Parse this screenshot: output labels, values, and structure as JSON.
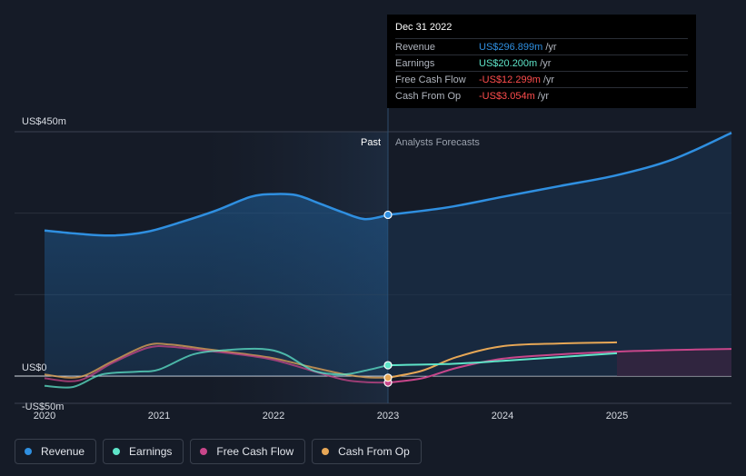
{
  "tooltip": {
    "date": "Dec 31 2022",
    "rows": [
      {
        "label": "Revenue",
        "value": "US$296.899m",
        "unit": "/yr",
        "color": "#2f8fe0"
      },
      {
        "label": "Earnings",
        "value": "US$20.200m",
        "unit": "/yr",
        "color": "#5ee4c8"
      },
      {
        "label": "Free Cash Flow",
        "value": "-US$12.299m",
        "unit": "/yr",
        "color": "#ff4d4d"
      },
      {
        "label": "Cash From Op",
        "value": "-US$3.054m",
        "unit": "/yr",
        "color": "#ff4d4d"
      }
    ]
  },
  "legend": [
    {
      "label": "Revenue",
      "color": "#2f8fe0"
    },
    {
      "label": "Earnings",
      "color": "#5ee4c8"
    },
    {
      "label": "Free Cash Flow",
      "color": "#c8468a"
    },
    {
      "label": "Cash From Op",
      "color": "#e7a756"
    }
  ],
  "chart_data": {
    "type": "line",
    "y_axis_labels": [
      "US$450m",
      "US$0",
      "-US$50m"
    ],
    "ylim": [
      -50,
      450
    ],
    "xlim": [
      2020,
      2026
    ],
    "x_ticks": [
      "2020",
      "2021",
      "2022",
      "2023",
      "2024",
      "2025"
    ],
    "x_tick_values": [
      2020,
      2021,
      2022,
      2023,
      2024,
      2025
    ],
    "past_label": "Past",
    "forecast_label": "Analysts Forecasts",
    "divider_x": 2023.0,
    "highlight_x": 2023.0,
    "series": [
      {
        "name": "Revenue",
        "color": "#2f8fe0",
        "points": [
          [
            2020.0,
            268
          ],
          [
            2020.3,
            262
          ],
          [
            2020.6,
            259
          ],
          [
            2020.9,
            266
          ],
          [
            2021.2,
            284
          ],
          [
            2021.5,
            305
          ],
          [
            2021.8,
            330
          ],
          [
            2022.0,
            335
          ],
          [
            2022.2,
            333
          ],
          [
            2022.4,
            318
          ],
          [
            2022.6,
            302
          ],
          [
            2022.8,
            289
          ],
          [
            2023.0,
            297
          ],
          [
            2023.5,
            310
          ],
          [
            2024.0,
            330
          ],
          [
            2024.5,
            350
          ],
          [
            2025.0,
            370
          ],
          [
            2025.5,
            400
          ],
          [
            2026.0,
            448
          ]
        ]
      },
      {
        "name": "Earnings",
        "color": "#5ee4c8",
        "points": [
          [
            2020.0,
            -18
          ],
          [
            2020.25,
            -20
          ],
          [
            2020.5,
            3
          ],
          [
            2020.8,
            8
          ],
          [
            2021.0,
            12
          ],
          [
            2021.3,
            40
          ],
          [
            2021.6,
            48
          ],
          [
            2021.9,
            50
          ],
          [
            2022.1,
            40
          ],
          [
            2022.35,
            10
          ],
          [
            2022.6,
            3
          ],
          [
            2022.8,
            10
          ],
          [
            2023.0,
            20
          ],
          [
            2023.5,
            22
          ],
          [
            2024.0,
            28
          ],
          [
            2024.5,
            35
          ],
          [
            2025.0,
            42
          ]
        ]
      },
      {
        "name": "Free Cash Flow",
        "color": "#c8468a",
        "points": [
          [
            2020.0,
            -4
          ],
          [
            2020.3,
            -8
          ],
          [
            2020.6,
            25
          ],
          [
            2020.9,
            52
          ],
          [
            2021.1,
            54
          ],
          [
            2021.4,
            47
          ],
          [
            2021.7,
            40
          ],
          [
            2022.0,
            30
          ],
          [
            2022.3,
            12
          ],
          [
            2022.6,
            -6
          ],
          [
            2022.8,
            -11
          ],
          [
            2023.0,
            -12
          ],
          [
            2023.3,
            -4
          ],
          [
            2023.6,
            15
          ],
          [
            2024.0,
            32
          ],
          [
            2024.5,
            40
          ],
          [
            2025.0,
            45
          ],
          [
            2025.5,
            48
          ],
          [
            2026.0,
            50
          ]
        ]
      },
      {
        "name": "Cash From Op",
        "color": "#e7a756",
        "points": [
          [
            2020.0,
            3
          ],
          [
            2020.3,
            -2
          ],
          [
            2020.6,
            28
          ],
          [
            2020.9,
            57
          ],
          [
            2021.1,
            58
          ],
          [
            2021.4,
            50
          ],
          [
            2021.7,
            42
          ],
          [
            2022.0,
            33
          ],
          [
            2022.3,
            18
          ],
          [
            2022.6,
            4
          ],
          [
            2022.8,
            -2
          ],
          [
            2023.0,
            -3
          ],
          [
            2023.3,
            10
          ],
          [
            2023.6,
            35
          ],
          [
            2024.0,
            55
          ],
          [
            2024.5,
            60
          ],
          [
            2025.0,
            62
          ]
        ]
      }
    ]
  }
}
